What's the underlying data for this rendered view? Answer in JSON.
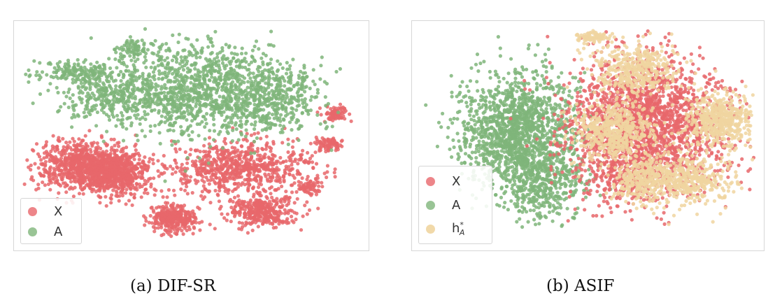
{
  "colors": {
    "X": "#e8676b",
    "A": "#7fb57a",
    "h": "#f0d5a0",
    "frame": "#d7d7d7"
  },
  "captions": {
    "a": "(a)  DIF-SR",
    "b": "(b)  ASIF"
  },
  "chart_data": [
    {
      "type": "scatter",
      "title": "",
      "caption": "(a)  DIF-SR",
      "axes_visible": false,
      "grid": false,
      "legend_placement": "bottom-left",
      "legend": [
        "X",
        "A"
      ],
      "series": [
        {
          "name": "X",
          "color": "#e8676b",
          "clusters": [
            {
              "cx": 0.2,
              "cy": 0.36,
              "sx": 0.075,
              "sy": 0.055,
              "n": 1000
            },
            {
              "cx": 0.29,
              "cy": 0.31,
              "sx": 0.05,
              "sy": 0.045,
              "n": 350
            },
            {
              "cx": 0.64,
              "cy": 0.35,
              "sx": 0.105,
              "sy": 0.055,
              "n": 750
            },
            {
              "cx": 0.45,
              "cy": 0.12,
              "sx": 0.035,
              "sy": 0.03,
              "n": 350
            },
            {
              "cx": 0.71,
              "cy": 0.15,
              "sx": 0.05,
              "sy": 0.035,
              "n": 350
            },
            {
              "cx": 0.92,
              "cy": 0.6,
              "sx": 0.018,
              "sy": 0.018,
              "n": 80
            },
            {
              "cx": 0.9,
              "cy": 0.46,
              "sx": 0.018,
              "sy": 0.016,
              "n": 80
            },
            {
              "cx": 0.84,
              "cy": 0.26,
              "sx": 0.016,
              "sy": 0.016,
              "n": 60
            }
          ]
        },
        {
          "name": "A",
          "color": "#7fb57a",
          "clusters": [
            {
              "cx": 0.52,
              "cy": 0.7,
              "sx": 0.13,
              "sy": 0.11,
              "n": 1200
            },
            {
              "cx": 0.25,
              "cy": 0.68,
              "sx": 0.07,
              "sy": 0.06,
              "n": 280
            },
            {
              "cx": 0.16,
              "cy": 0.79,
              "sx": 0.06,
              "sy": 0.025,
              "n": 160
            },
            {
              "cx": 0.34,
              "cy": 0.9,
              "sx": 0.03,
              "sy": 0.02,
              "n": 70
            },
            {
              "cx": 0.75,
              "cy": 0.68,
              "sx": 0.07,
              "sy": 0.08,
              "n": 320
            }
          ]
        }
      ]
    },
    {
      "type": "scatter",
      "title": "",
      "caption": "(b)  ASIF",
      "axes_visible": false,
      "grid": false,
      "legend_placement": "bottom-left",
      "legend": [
        "X",
        "A",
        "h*_A"
      ],
      "series": [
        {
          "name": "A",
          "color": "#7fb57a",
          "clusters": [
            {
              "cx": 0.3,
              "cy": 0.52,
              "sx": 0.085,
              "sy": 0.13,
              "n": 1500
            },
            {
              "cx": 0.37,
              "cy": 0.28,
              "sx": 0.06,
              "sy": 0.08,
              "n": 400
            }
          ]
        },
        {
          "name": "X",
          "color": "#e8676b",
          "clusters": [
            {
              "cx": 0.67,
              "cy": 0.55,
              "sx": 0.115,
              "sy": 0.15,
              "n": 2000
            },
            {
              "cx": 0.61,
              "cy": 0.35,
              "sx": 0.07,
              "sy": 0.08,
              "n": 300
            }
          ]
        },
        {
          "name": "h*_A",
          "label_base": "h",
          "label_sub": "A",
          "label_sup": "*",
          "color": "#f0d5a0",
          "clusters": [
            {
              "cx": 0.64,
              "cy": 0.8,
              "sx": 0.06,
              "sy": 0.06,
              "n": 400
            },
            {
              "cx": 0.58,
              "cy": 0.52,
              "sx": 0.06,
              "sy": 0.06,
              "n": 500
            },
            {
              "cx": 0.89,
              "cy": 0.57,
              "sx": 0.05,
              "sy": 0.06,
              "n": 500
            },
            {
              "cx": 0.79,
              "cy": 0.3,
              "sx": 0.07,
              "sy": 0.06,
              "n": 450
            },
            {
              "cx": 0.66,
              "cy": 0.3,
              "sx": 0.045,
              "sy": 0.05,
              "n": 250
            },
            {
              "cx": 0.52,
              "cy": 0.95,
              "sx": 0.025,
              "sy": 0.012,
              "n": 90
            }
          ]
        }
      ]
    }
  ]
}
